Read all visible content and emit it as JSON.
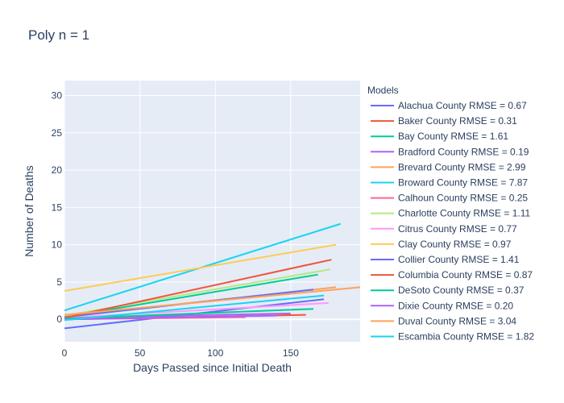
{
  "chart_data": {
    "type": "line",
    "title": "Poly n = 1",
    "xlabel": "Days Passed since Initial Death",
    "ylabel": "Number of Deaths",
    "xlim": [
      0,
      196
    ],
    "ylim": [
      -3,
      32
    ],
    "x_ticks": [
      0,
      50,
      100,
      150
    ],
    "y_ticks": [
      0,
      5,
      10,
      15,
      20,
      25,
      30
    ],
    "grid": true,
    "legend": {
      "title": "Models",
      "placement": "right"
    },
    "series": [
      {
        "name": "Alachua County RMSE = 0.67",
        "color": "#636efa",
        "x": [
          0,
          172
        ],
        "y": [
          -1.2,
          2.7
        ]
      },
      {
        "name": "Baker County RMSE = 0.31",
        "color": "#EF553B",
        "x": [
          0,
          160
        ],
        "y": [
          0.0,
          0.6
        ]
      },
      {
        "name": "Bay County RMSE = 1.61",
        "color": "#00cc96",
        "x": [
          0,
          168
        ],
        "y": [
          0.3,
          6.0
        ]
      },
      {
        "name": "Bradford County RMSE = 0.19",
        "color": "#ab63fa",
        "x": [
          0,
          150
        ],
        "y": [
          0.2,
          0.8
        ]
      },
      {
        "name": "Brevard County RMSE = 2.99",
        "color": "#FFA15A",
        "x": [
          0,
          180
        ],
        "y": [
          0.4,
          4.3
        ]
      },
      {
        "name": "Broward County RMSE = 7.87",
        "color": "#19d3f3",
        "x": [
          0,
          183
        ],
        "y": [
          1.2,
          12.8
        ]
      },
      {
        "name": "Calhoun County RMSE = 0.25",
        "color": "#FF6692",
        "x": [
          0,
          120
        ],
        "y": [
          0.0,
          0.3
        ]
      },
      {
        "name": "Charlotte County RMSE = 1.11",
        "color": "#B6E880",
        "x": [
          0,
          176
        ],
        "y": [
          0.5,
          6.7
        ]
      },
      {
        "name": "Citrus County RMSE = 0.77",
        "color": "#FF97FF",
        "x": [
          0,
          175
        ],
        "y": [
          0.2,
          2.2
        ]
      },
      {
        "name": "Clay County RMSE = 0.97",
        "color": "#FECB52",
        "x": [
          0,
          180
        ],
        "y": [
          3.8,
          10.0
        ]
      },
      {
        "name": "Collier County RMSE = 1.41",
        "color": "#636efa",
        "x": [
          0,
          165
        ],
        "y": [
          0.3,
          4.0
        ]
      },
      {
        "name": "Columbia County RMSE = 0.87",
        "color": "#EF553B",
        "x": [
          0,
          177
        ],
        "y": [
          0.2,
          8.0
        ]
      },
      {
        "name": "DeSoto County RMSE = 0.37",
        "color": "#00cc96",
        "x": [
          0,
          165
        ],
        "y": [
          0.1,
          1.4
        ]
      },
      {
        "name": "Dixie County RMSE = 0.20",
        "color": "#ab63fa",
        "x": [
          0,
          140
        ],
        "y": [
          0.0,
          0.5
        ]
      },
      {
        "name": "Duval County RMSE = 3.04",
        "color": "#FFA15A",
        "x": [
          0,
          196
        ],
        "y": [
          0.6,
          4.3
        ]
      },
      {
        "name": "Escambia County RMSE = 1.82",
        "color": "#19d3f3",
        "x": [
          0,
          172
        ],
        "y": [
          -0.1,
          3.2
        ]
      }
    ]
  }
}
